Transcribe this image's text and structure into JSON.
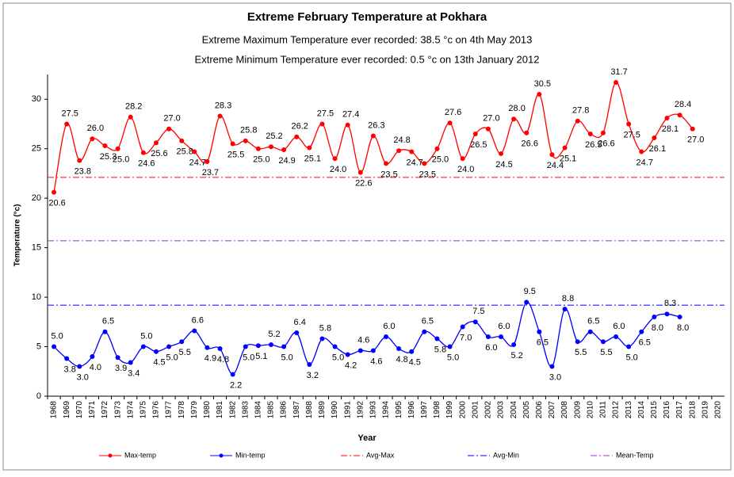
{
  "chart_data": {
    "type": "line",
    "title": "Extreme February Temperature at Pokhara",
    "subtitles": [
      "Extreme Maximum Temperature ever recorded: 38.5 °c on 4th May 2013",
      "Extreme Minimum Temperature ever recorded: 0.5 °c on 13th January 2012"
    ],
    "x_label": "Year",
    "y_label": "Temperature (°c)",
    "categories": [
      "1968",
      "1969",
      "1970",
      "1971",
      "1972",
      "1973",
      "1974",
      "1975",
      "1976",
      "1977",
      "1978",
      "1979",
      "1980",
      "1981",
      "1982",
      "1983",
      "1984",
      "1985",
      "1986",
      "1987",
      "1988",
      "1989",
      "1990",
      "1991",
      "1992",
      "1993",
      "1994",
      "1995",
      "1996",
      "1997",
      "1998",
      "1999",
      "2000",
      "2001",
      "2002",
      "2003",
      "2004",
      "2005",
      "2006",
      "2007",
      "2008",
      "2009",
      "2010",
      "2011",
      "2012",
      "2013",
      "2014",
      "2015",
      "2016",
      "2017",
      "2018",
      "2019",
      "2020"
    ],
    "series": [
      {
        "name": "Max-temp",
        "color": "#ff0000",
        "values": [
          20.6,
          27.5,
          23.8,
          26.0,
          25.3,
          25.0,
          28.2,
          24.6,
          25.6,
          27.0,
          25.8,
          24.7,
          23.7,
          28.3,
          25.5,
          25.8,
          25.0,
          25.2,
          24.9,
          26.2,
          25.1,
          27.5,
          24.0,
          27.4,
          22.6,
          26.3,
          23.5,
          24.8,
          24.7,
          23.5,
          25.0,
          27.6,
          24.0,
          26.5,
          27.0,
          24.5,
          28.0,
          26.6,
          30.5,
          24.4,
          25.1,
          27.8,
          26.5,
          26.6,
          31.7,
          27.5,
          24.7,
          26.1,
          28.1,
          28.4,
          27.0,
          null,
          null
        ],
        "value_labels": [
          "20.6",
          "27.5",
          "23.8",
          "26.0",
          "25.3",
          "25.0",
          "28.2",
          "24.6",
          "25.6",
          "27.0",
          "25.8",
          "24.7",
          "23.7",
          "28.3",
          "25.5",
          "25.8",
          "25.0",
          "25.2",
          "24.9",
          "26.2",
          "25.1",
          "27.5",
          "24.0",
          "27.4",
          "22.6",
          "26.3",
          "23.5",
          "24.8",
          "24.7",
          "23.5",
          "25.0",
          "27.6",
          "24.0",
          "26.5",
          "27.0",
          "24.5",
          "28.0",
          "26.6",
          "30.5",
          "24.4",
          "25.1",
          "27.8",
          "26.5",
          "26.6",
          "31.7",
          "27.5",
          "24.7",
          "26.1",
          "28.1",
          "28.4",
          "27.0",
          null,
          null
        ]
      },
      {
        "name": "Min-temp",
        "color": "#0000ff",
        "values": [
          5.0,
          3.8,
          3.0,
          4.0,
          6.5,
          3.9,
          3.4,
          5.0,
          4.5,
          5.0,
          5.5,
          6.6,
          4.9,
          4.8,
          2.2,
          5.0,
          5.1,
          5.2,
          5.0,
          6.4,
          3.2,
          5.8,
          5.0,
          4.2,
          4.6,
          4.6,
          6.0,
          4.8,
          4.5,
          6.5,
          5.8,
          5.0,
          7.0,
          7.5,
          6.0,
          6.0,
          5.2,
          9.5,
          6.5,
          3.0,
          8.8,
          5.5,
          6.5,
          5.5,
          6.0,
          5.0,
          6.5,
          8.0,
          8.3,
          8.0,
          null,
          null,
          null
        ],
        "value_labels": [
          "5.0",
          "3.8",
          "3.0",
          "4.0",
          "6.5",
          "3.9",
          "3.4",
          "5.0",
          "4.5",
          "5.0",
          "5.5",
          "6.6",
          "4.9",
          "4.8",
          "2.2",
          "5.0",
          "5.1",
          "5.2",
          "5.0",
          "6.4",
          "3.2",
          "5.8",
          "5.0",
          "4.2",
          "4.6",
          "4.6",
          "6.0",
          "4.8",
          "4.5",
          "6.5",
          "5.8",
          "5.0",
          "7.0",
          "7.5",
          "6.0",
          "6.0",
          "5.2",
          "9.5",
          "6.5",
          "3.0",
          "8.8",
          "5.5",
          "6.5",
          "5.5",
          "6.0",
          "5.0",
          "6.5",
          "8.0",
          "8.3",
          "8.0",
          null,
          null,
          null
        ]
      }
    ],
    "reference_lines": [
      {
        "name": "Avg-Max",
        "value": 22.1,
        "color": "#ff0000",
        "style": "dash-dot"
      },
      {
        "name": "Avg-Min",
        "value": 9.2,
        "color": "#0000ff",
        "style": "dash-dot"
      },
      {
        "name": "Mean-Temp",
        "value": 15.7,
        "color": "#9933cc",
        "style": "dash-dot"
      }
    ],
    "ylim": [
      0,
      32.5
    ],
    "yticks": [
      0,
      5,
      10,
      15,
      20,
      25,
      30
    ],
    "legend": "bottom"
  }
}
